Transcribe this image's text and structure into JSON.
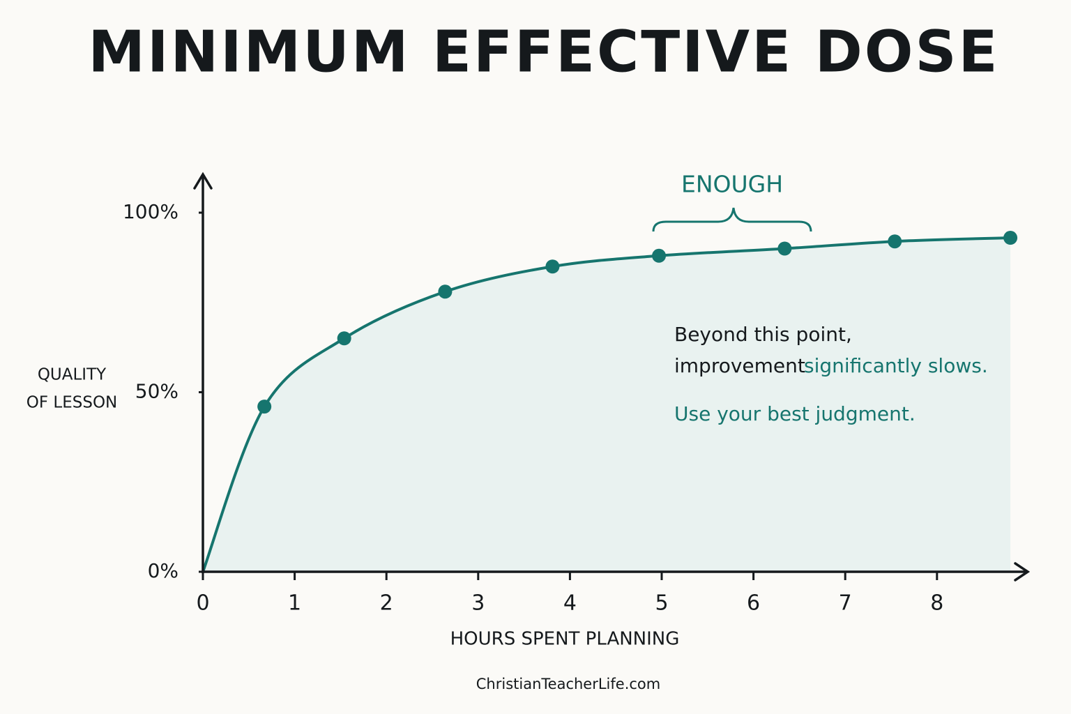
{
  "chart_data": {
    "type": "line",
    "title": "MINIMUM EFFECTIVE DOSE",
    "x_label": "HOURS SPENT PLANNING",
    "y_label": [
      "QUALITY",
      "OF LESSON"
    ],
    "xlim": [
      0,
      9
    ],
    "ylim": [
      0,
      110
    ],
    "xticks": [
      0,
      1,
      2,
      3,
      4,
      5,
      6,
      7,
      8
    ],
    "yticks": [
      {
        "value": 0,
        "label": "0%"
      },
      {
        "value": 50,
        "label": "50%"
      },
      {
        "value": 100,
        "label": "100%"
      }
    ],
    "series": [
      {
        "color": "#16756e",
        "fill": "#e9f2f0",
        "x": [
          0.67,
          1.54,
          2.64,
          3.81,
          4.97,
          6.34,
          7.54,
          8.8
        ],
        "values": [
          46,
          65,
          78,
          85,
          88,
          90,
          92,
          93
        ]
      }
    ],
    "annotations": {
      "bracket_label": "ENOUGH",
      "note_line1": "Beyond this point,",
      "note_line2a": "improvement",
      "note_line2b": "significantly slows.",
      "note_line3": "Use your best judgment."
    },
    "footer": "ChristianTeacherLife.com"
  }
}
